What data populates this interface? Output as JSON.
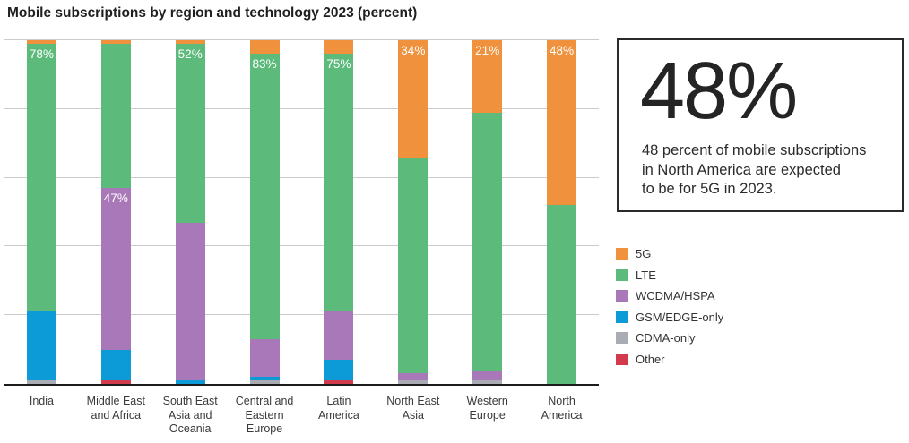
{
  "title": "Mobile subscriptions by region and technology 2023 (percent)",
  "chart_data": {
    "type": "bar",
    "stacked": true,
    "unit": "percent",
    "ylim": [
      0,
      100
    ],
    "gridline_step": 20,
    "grid": true,
    "legend_position": "right",
    "categories": [
      "India",
      "Middle East\nand Africa",
      "South East\nAsia and\nOceania",
      "Central and\nEastern\nEurope",
      "Latin\nAmerica",
      "North East\nAsia",
      "Western\nEurope",
      "North\nAmerica"
    ],
    "series": [
      {
        "name": "5G",
        "color": "#F0913D",
        "values": [
          1,
          1,
          1,
          4,
          4,
          34,
          21,
          48
        ]
      },
      {
        "name": "LTE",
        "color": "#5CBA7B",
        "values": [
          78,
          42,
          52,
          83,
          75,
          63,
          75,
          52
        ]
      },
      {
        "name": "WCDMA/HSPA",
        "color": "#A878B9",
        "values": [
          0,
          47,
          46,
          11,
          14,
          2,
          3,
          0
        ]
      },
      {
        "name": "GSM/EDGE-only",
        "color": "#0C9BD7",
        "values": [
          20,
          9,
          1,
          1,
          6,
          0,
          0,
          0
        ]
      },
      {
        "name": "CDMA-only",
        "color": "#A9ACB2",
        "values": [
          1,
          0,
          0,
          1,
          0,
          1,
          1,
          0
        ]
      },
      {
        "name": "Other",
        "color": "#D23B4B",
        "values": [
          0,
          1,
          0,
          0,
          1,
          0,
          0,
          0
        ]
      }
    ],
    "bar_labels": [
      {
        "category": "India",
        "text": "78%",
        "segment": "LTE"
      },
      {
        "category": "Middle East and Africa",
        "text": "47%",
        "segment": "WCDMA/HSPA"
      },
      {
        "category": "South East Asia and Oceania",
        "text": "52%",
        "segment": "LTE"
      },
      {
        "category": "Central and Eastern Europe",
        "text": "83%",
        "segment": "LTE"
      },
      {
        "category": "Latin America",
        "text": "75%",
        "segment": "LTE"
      },
      {
        "category": "North East Asia",
        "text": "34%",
        "segment": "5G"
      },
      {
        "category": "Western Europe",
        "text": "21%",
        "segment": "5G"
      },
      {
        "category": "North America",
        "text": "48%",
        "segment": "5G"
      }
    ]
  },
  "legend": {
    "items": [
      {
        "label": "5G",
        "color": "#F0913D"
      },
      {
        "label": "LTE",
        "color": "#5CBA7B"
      },
      {
        "label": "WCDMA/HSPA",
        "color": "#A878B9"
      },
      {
        "label": "GSM/EDGE-only",
        "color": "#0C9BD7"
      },
      {
        "label": "CDMA-only",
        "color": "#A9ACB2"
      },
      {
        "label": "Other",
        "color": "#D23B4B"
      }
    ]
  },
  "callout": {
    "headline": "48%",
    "body": "48 percent of mobile subscriptions\nin North America are expected\nto be for 5G in 2023."
  },
  "colors": {
    "background": "#FFFFFF",
    "gridline": "#C9CBCD",
    "axis_line": "#1C1C1C",
    "text": "#303030",
    "bar_value_label": "#FFFFFF"
  }
}
